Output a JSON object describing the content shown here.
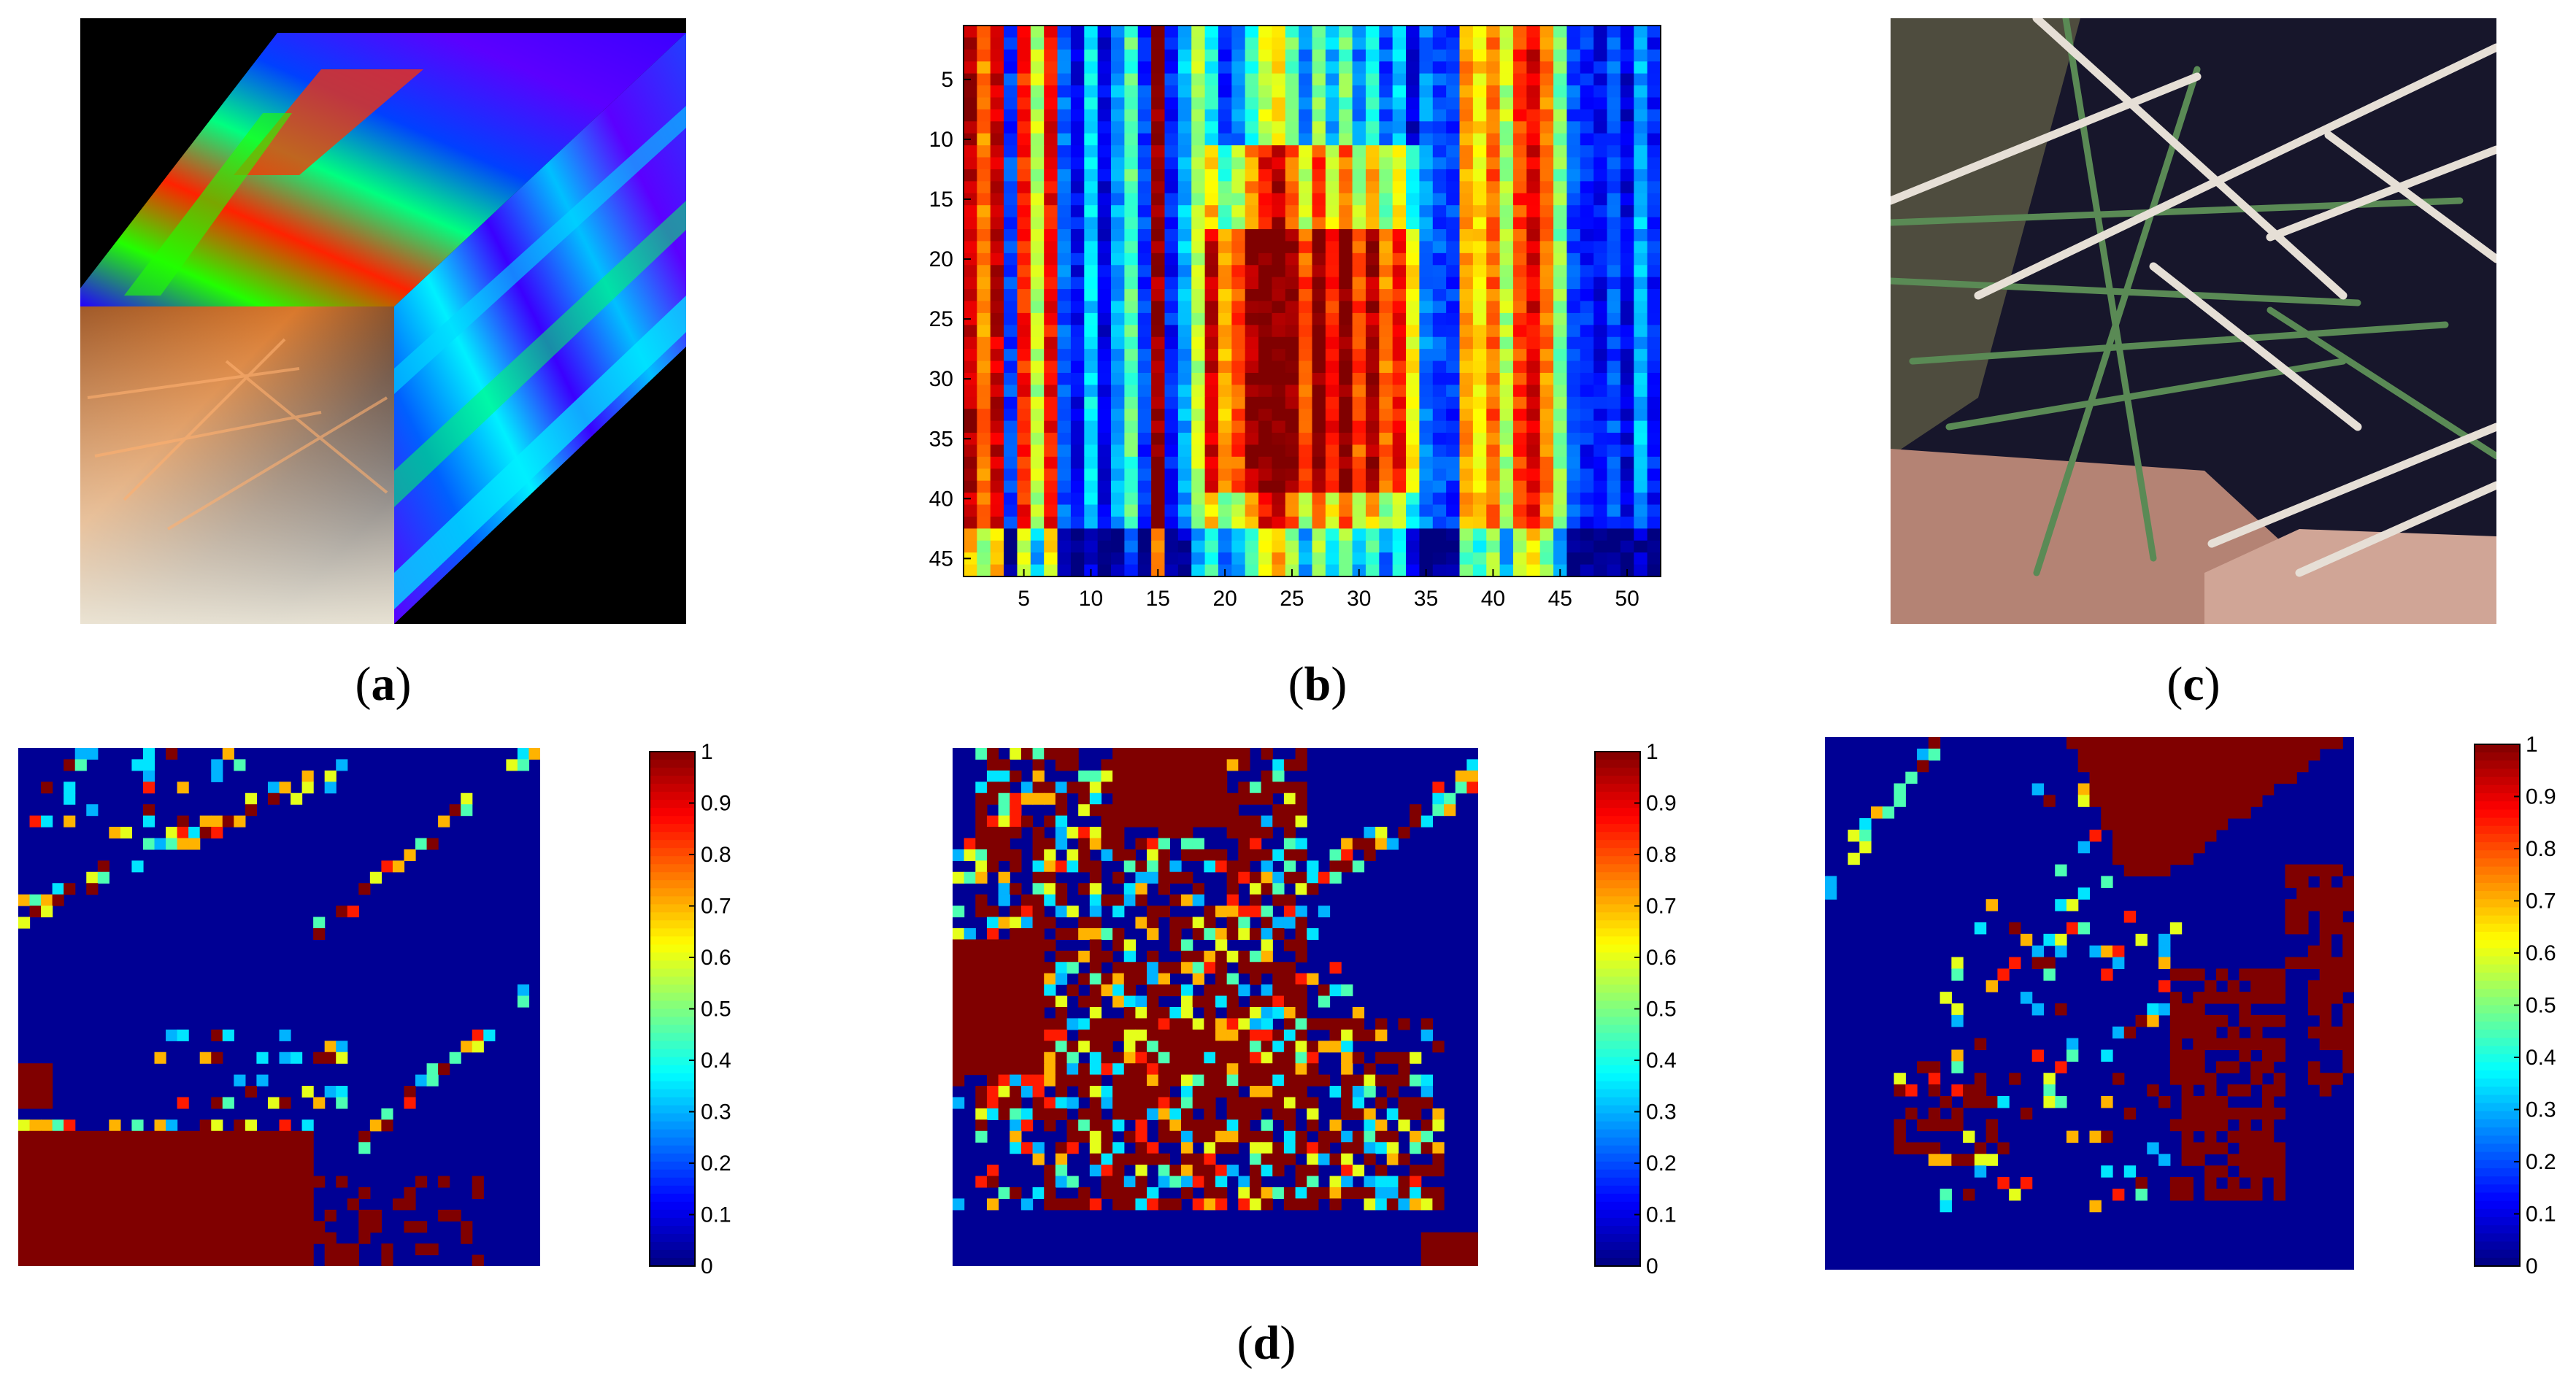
{
  "figure": {
    "captions": {
      "a": "a",
      "b": "b",
      "c": "c",
      "d": "d"
    }
  },
  "panel_a": {
    "name": "hyperspectral-cube",
    "colors": {
      "background": "#000000",
      "purple": "#5b00ff",
      "blue": "#0010ff",
      "cyan": "#00f0ff",
      "green": "#22ff00",
      "red": "#ff2200"
    }
  },
  "panel_c": {
    "name": "rgb-photo-crop",
    "colors": {
      "dark": "#17162b",
      "needle_green": "#5a8a55",
      "needle_white": "#e6dfd6",
      "skin": "#b48374"
    }
  },
  "chart_data": [
    {
      "type": "heatmap",
      "title": "",
      "xlabel": "",
      "ylabel": "",
      "x_ticks": [
        "5",
        "10",
        "15",
        "20",
        "25",
        "30",
        "35",
        "40",
        "45",
        "50"
      ],
      "y_ticks": [
        "5",
        "10",
        "15",
        "20",
        "25",
        "30",
        "35",
        "40",
        "45"
      ],
      "xlim": [
        1,
        52
      ],
      "ylim": [
        1,
        47
      ],
      "colormap": "jet",
      "column_profiles": {
        "description_note": "",
        "columns": [
          0.95,
          0.75,
          0.92,
          0.18,
          0.85,
          0.55,
          0.88,
          0.22,
          0.12,
          0.35,
          0.1,
          0.28,
          0.45,
          0.18,
          0.98,
          0.15,
          0.3,
          0.55,
          0.68,
          0.45,
          0.55,
          0.72,
          0.88,
          0.95,
          0.78,
          0.55,
          0.82,
          0.6,
          0.78,
          0.55,
          0.7,
          0.5,
          0.62,
          0.38,
          0.25,
          0.2,
          0.18,
          0.72,
          0.65,
          0.78,
          0.55,
          0.82,
          0.9,
          0.75,
          0.5,
          0.2,
          0.15,
          0.12,
          0.2,
          0.1,
          0.3,
          0.15
        ]
      }
    },
    {
      "type": "heatmap",
      "title": "",
      "colormap": "jet",
      "colorbar_ticks": [
        "0",
        "0.1",
        "0.2",
        "0.3",
        "0.4",
        "0.5",
        "0.6",
        "0.7",
        "0.8",
        "0.9",
        "1"
      ],
      "clim": [
        0,
        1
      ]
    },
    {
      "type": "heatmap",
      "title": "",
      "colormap": "jet",
      "colorbar_ticks": [
        "0",
        "0.1",
        "0.2",
        "0.3",
        "0.4",
        "0.5",
        "0.6",
        "0.7",
        "0.8",
        "0.9",
        "1"
      ],
      "clim": [
        0,
        1
      ]
    },
    {
      "type": "heatmap",
      "title": "",
      "colormap": "jet",
      "colorbar_ticks": [
        "0",
        "0.1",
        "0.2",
        "0.3",
        "0.4",
        "0.5",
        "0.6",
        "0.7",
        "0.8",
        "0.9",
        "1"
      ],
      "clim": [
        0,
        1
      ]
    }
  ]
}
